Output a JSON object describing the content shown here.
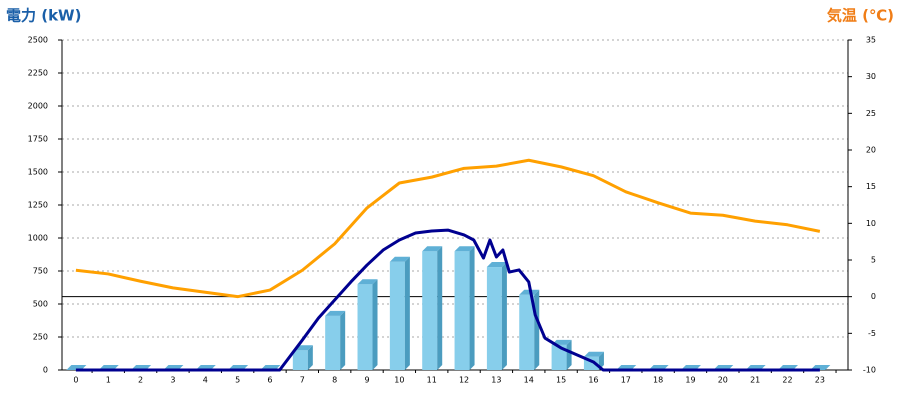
{
  "chart_data": {
    "type": "bar",
    "y_label": "電力 (kW)",
    "y2_label": "気温 (℃)",
    "categories": [
      "0",
      "1",
      "2",
      "3",
      "4",
      "5",
      "6",
      "7",
      "8",
      "9",
      "10",
      "11",
      "12",
      "13",
      "14",
      "15",
      "16",
      "17",
      "18",
      "19",
      "20",
      "21",
      "22",
      "23"
    ],
    "series": [
      {
        "type": "bar",
        "color": "#87ceeb",
        "values": [
          0,
          0,
          0,
          0,
          0,
          0,
          0,
          150,
          410,
          650,
          820,
          900,
          900,
          780,
          570,
          190,
          100,
          0,
          0,
          0,
          0,
          0,
          0,
          0
        ]
      },
      {
        "type": "line",
        "axis": "y2",
        "color": "#ffa000",
        "values": [
          3.6,
          3.1,
          2.1,
          1.2,
          0.6,
          0,
          0.9,
          3.6,
          7.2,
          12.1,
          15.5,
          16.3,
          17.5,
          17.8,
          18.6,
          17.7,
          16.5,
          14.3,
          12.8,
          11.4,
          11.1,
          10.3,
          9.8,
          8.9
        ]
      },
      {
        "type": "line",
        "color": "#000090",
        "x": [
          0,
          6.3,
          7,
          7.5,
          8,
          8.5,
          9,
          9.5,
          10,
          10.5,
          11,
          11.5,
          12,
          12.3,
          12.6,
          12.8,
          13,
          13.2,
          13.4,
          13.7,
          14,
          14.2,
          14.5,
          15,
          15.5,
          16,
          16.3,
          23
        ],
        "values": [
          0,
          0,
          227,
          394,
          530,
          667,
          795,
          909,
          985,
          1038,
          1053,
          1060,
          1023,
          985,
          848,
          985,
          856,
          909,
          742,
          758,
          667,
          417,
          242,
          167,
          114,
          61,
          0,
          0
        ]
      }
    ],
    "ylim": [
      0,
      2500
    ],
    "yticks": [
      0,
      250,
      500,
      750,
      1000,
      1250,
      1500,
      1750,
      2000,
      2250,
      2500
    ],
    "y2lim": [
      -10,
      35
    ],
    "y2ticks": [
      -10,
      -5,
      0,
      5,
      10,
      15,
      20,
      25,
      30,
      35
    ],
    "grid": true
  }
}
